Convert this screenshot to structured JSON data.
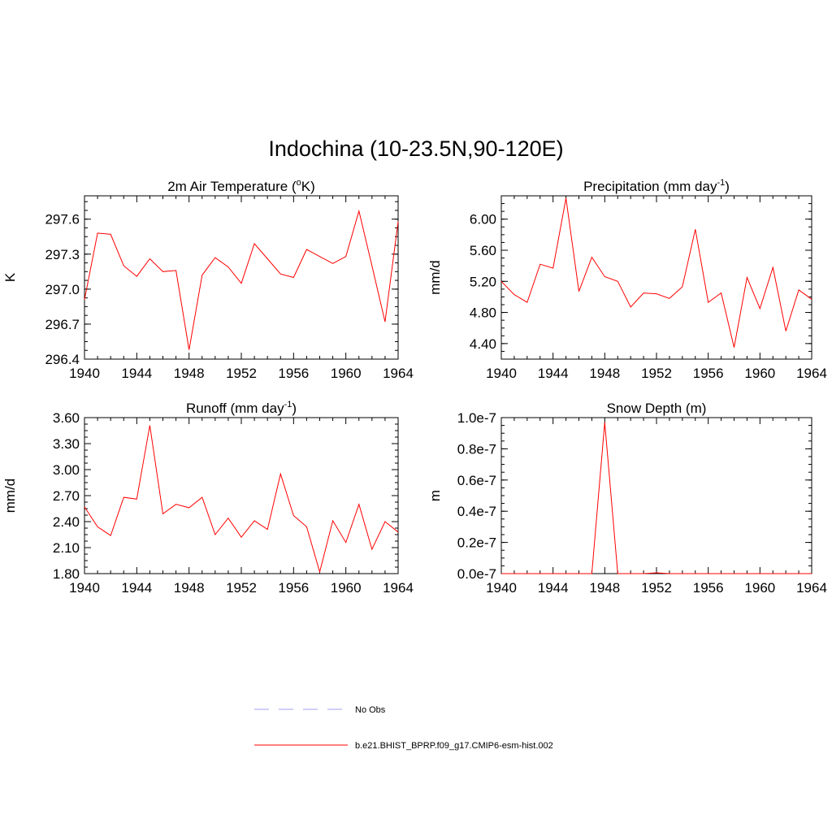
{
  "title": "Indochina (10-23.5N,90-120E)",
  "chart_data": [
    {
      "type": "line",
      "title": "2m Air Temperature (",
      "title_sup": "o",
      "title_suffix": "K)",
      "ylabel": "K",
      "x": [
        1940,
        1941,
        1942,
        1943,
        1944,
        1945,
        1946,
        1947,
        1948,
        1949,
        1950,
        1951,
        1952,
        1953,
        1954,
        1955,
        1956,
        1957,
        1958,
        1959,
        1960,
        1961,
        1962,
        1963,
        1964
      ],
      "series": [
        {
          "name": "b.e21.BHIST_BPRP.f09_g17.CMIP6-esm-hist.002",
          "values": [
            296.91,
            297.48,
            297.47,
            297.2,
            297.11,
            297.26,
            297.15,
            297.16,
            296.48,
            297.12,
            297.27,
            297.19,
            297.05,
            297.39,
            297.26,
            297.13,
            297.1,
            297.34,
            297.28,
            297.22,
            297.28,
            297.67,
            297.2,
            296.72,
            297.58
          ]
        }
      ],
      "xlim": [
        1940,
        1964
      ],
      "ylim": [
        296.4,
        297.8
      ],
      "yticks": [
        296.4,
        296.7,
        297.0,
        297.3,
        297.6
      ],
      "ytick_labels": [
        "296.4",
        "296.7",
        "297.0",
        "297.3",
        "297.6"
      ]
    },
    {
      "type": "line",
      "title": "Precipitation (mm day",
      "title_sup": "-1",
      "title_suffix": ")",
      "ylabel": "mm/d",
      "x": [
        1940,
        1941,
        1942,
        1943,
        1944,
        1945,
        1946,
        1947,
        1948,
        1949,
        1950,
        1951,
        1952,
        1953,
        1954,
        1955,
        1956,
        1957,
        1958,
        1959,
        1960,
        1961,
        1962,
        1963,
        1964
      ],
      "series": [
        {
          "name": "b.e21.BHIST_BPRP.f09_g17.CMIP6-esm-hist.002",
          "values": [
            5.2,
            5.03,
            4.93,
            5.42,
            5.37,
            6.27,
            5.07,
            5.51,
            5.26,
            5.2,
            4.87,
            5.05,
            5.04,
            4.98,
            5.13,
            5.87,
            4.93,
            5.05,
            4.35,
            5.25,
            4.85,
            5.38,
            4.56,
            5.09,
            4.97
          ]
        }
      ],
      "xlim": [
        1940,
        1964
      ],
      "ylim": [
        4.2,
        6.3
      ],
      "yticks": [
        4.4,
        4.8,
        5.2,
        5.6,
        6.0
      ],
      "ytick_labels": [
        "4.40",
        "4.80",
        "5.20",
        "5.60",
        "6.00"
      ]
    },
    {
      "type": "line",
      "title": "Runoff (mm day",
      "title_sup": "-1",
      "title_suffix": ")",
      "ylabel": "mm/d",
      "x": [
        1940,
        1941,
        1942,
        1943,
        1944,
        1945,
        1946,
        1947,
        1948,
        1949,
        1950,
        1951,
        1952,
        1953,
        1954,
        1955,
        1956,
        1957,
        1958,
        1959,
        1960,
        1961,
        1962,
        1963,
        1964
      ],
      "series": [
        {
          "name": "b.e21.BHIST_BPRP.f09_g17.CMIP6-esm-hist.002",
          "values": [
            2.57,
            2.34,
            2.24,
            2.68,
            2.66,
            3.51,
            2.49,
            2.6,
            2.56,
            2.68,
            2.25,
            2.44,
            2.22,
            2.41,
            2.31,
            2.95,
            2.47,
            2.34,
            1.82,
            2.41,
            2.16,
            2.6,
            2.08,
            2.4,
            2.28
          ]
        }
      ],
      "xlim": [
        1940,
        1964
      ],
      "ylim": [
        1.8,
        3.6
      ],
      "yticks": [
        1.8,
        2.1,
        2.4,
        2.7,
        3.0,
        3.3,
        3.6
      ],
      "ytick_labels": [
        "1.80",
        "2.10",
        "2.40",
        "2.70",
        "3.00",
        "3.30",
        "3.60"
      ]
    },
    {
      "type": "line",
      "title": "Snow Depth (m)",
      "title_sup": "",
      "title_suffix": "",
      "ylabel": "m",
      "x": [
        1940,
        1941,
        1942,
        1943,
        1944,
        1945,
        1946,
        1947,
        1948,
        1949,
        1950,
        1951,
        1952,
        1953,
        1954,
        1955,
        1956,
        1957,
        1958,
        1959,
        1960,
        1961,
        1962,
        1963,
        1964
      ],
      "series": [
        {
          "name": "b.e21.BHIST_BPRP.f09_g17.CMIP6-esm-hist.002",
          "values": [
            0,
            0,
            0,
            0,
            0,
            0,
            0,
            0,
            9.7e-08,
            0,
            0,
            0,
            5e-10,
            0,
            0,
            0,
            0,
            0,
            0,
            0,
            0,
            0,
            0,
            0,
            0
          ]
        }
      ],
      "xlim": [
        1940,
        1964
      ],
      "ylim": [
        0,
        1e-07
      ],
      "yticks": [
        0,
        2e-08,
        4e-08,
        6e-08,
        8e-08,
        1e-07
      ],
      "ytick_labels": [
        "0.0e-7",
        "0.2e-7",
        "0.4e-7",
        "0.6e-7",
        "0.8e-7",
        "1.0e-7"
      ]
    }
  ],
  "xtick_labels": [
    "1940",
    "1944",
    "1948",
    "1952",
    "1956",
    "1960",
    "1964"
  ],
  "xticks": [
    1940,
    1944,
    1948,
    1952,
    1956,
    1960,
    1964
  ],
  "legend": [
    {
      "label": "No Obs",
      "style": "dashed",
      "color": "#a0a0f0"
    },
    {
      "label": "b.e21.BHIST_BPRP.f09_g17.CMIP6-esm-hist.002",
      "style": "solid",
      "color": "#ff0000"
    }
  ],
  "colors": {
    "series": "#ff0000",
    "obs": "#a0a0f0"
  }
}
